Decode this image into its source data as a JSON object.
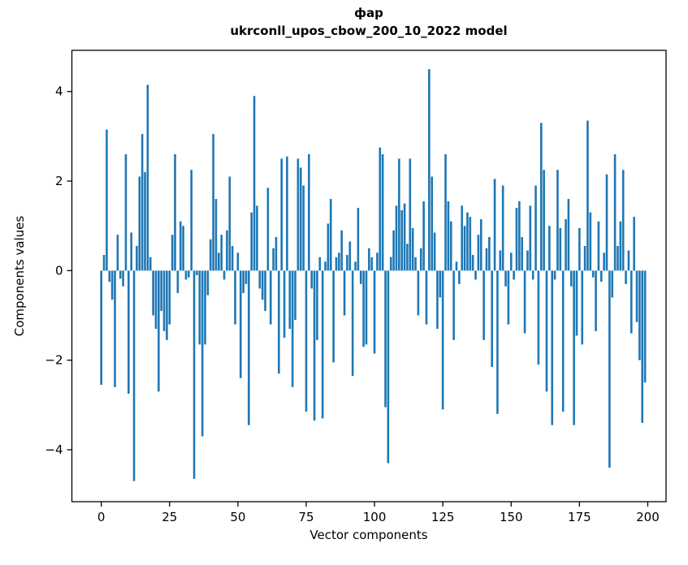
{
  "chart_data": {
    "type": "bar",
    "title_word": "фар",
    "title_model": "ukrconll_upos_cbow_200_10_2022 model",
    "title": "фар\nukrconll_upos_cbow_200_10_2022 model",
    "xlabel": "Vector components",
    "ylabel": "Components values",
    "bar_color": "#1f77b4",
    "axis_color": "#000000",
    "xlim": [
      -10.75,
      206.7
    ],
    "ylim": [
      -5.16,
      4.92
    ],
    "x_ticks": [
      {
        "value": 0,
        "label": "0"
      },
      {
        "value": 25,
        "label": "25"
      },
      {
        "value": 50,
        "label": "50"
      },
      {
        "value": 75,
        "label": "75"
      },
      {
        "value": 100,
        "label": "100"
      },
      {
        "value": 125,
        "label": "125"
      },
      {
        "value": 150,
        "label": "150"
      },
      {
        "value": 175,
        "label": "175"
      },
      {
        "value": 200,
        "label": "200"
      }
    ],
    "y_ticks": [
      {
        "value": -4,
        "label": "−4"
      },
      {
        "value": -2,
        "label": "−2"
      },
      {
        "value": 0,
        "label": "0"
      },
      {
        "value": 2,
        "label": "2"
      },
      {
        "value": 4,
        "label": "4"
      }
    ],
    "x_start": 0,
    "values": [
      -2.55,
      0.35,
      3.15,
      -0.25,
      -0.65,
      -2.6,
      0.8,
      -0.18,
      -0.35,
      2.6,
      -2.75,
      0.85,
      -4.7,
      0.55,
      2.1,
      3.05,
      2.2,
      4.15,
      0.3,
      -1.0,
      -1.3,
      -2.7,
      -0.9,
      -1.35,
      -1.55,
      -1.2,
      0.8,
      2.6,
      -0.5,
      1.1,
      1.0,
      -0.2,
      -0.15,
      2.25,
      -4.65,
      -0.1,
      -1.65,
      -3.7,
      -1.65,
      -0.55,
      0.7,
      3.05,
      1.6,
      0.4,
      0.8,
      -0.2,
      0.9,
      2.1,
      0.55,
      -1.2,
      0.4,
      -2.4,
      -0.5,
      -0.3,
      -3.45,
      1.3,
      3.9,
      1.45,
      -0.4,
      -0.65,
      -0.9,
      1.85,
      -1.2,
      0.5,
      0.75,
      -2.3,
      2.5,
      -1.5,
      2.55,
      -1.3,
      -2.6,
      -1.1,
      2.5,
      2.3,
      1.9,
      -3.15,
      2.6,
      -0.4,
      -3.35,
      -1.55,
      0.3,
      -3.3,
      0.2,
      1.05,
      1.6,
      -2.05,
      0.3,
      0.4,
      0.9,
      -1.0,
      0.35,
      0.65,
      -2.35,
      0.2,
      1.4,
      -0.3,
      -1.7,
      -1.65,
      0.5,
      0.3,
      -1.85,
      0.4,
      2.75,
      2.6,
      -3.05,
      -4.3,
      0.3,
      0.9,
      1.45,
      2.5,
      1.35,
      1.5,
      0.6,
      2.5,
      0.95,
      0.3,
      -1.0,
      0.5,
      1.55,
      -1.2,
      4.5,
      2.1,
      0.85,
      -1.3,
      -0.6,
      -3.1,
      2.6,
      1.55,
      1.1,
      -1.55,
      0.2,
      -0.3,
      1.45,
      1.0,
      1.3,
      1.2,
      0.35,
      -0.2,
      0.8,
      1.15,
      -1.55,
      0.5,
      0.75,
      -2.15,
      2.05,
      -3.2,
      0.45,
      1.9,
      -0.35,
      -1.2,
      0.4,
      -0.2,
      1.4,
      1.55,
      0.75,
      -1.4,
      0.45,
      1.45,
      -0.2,
      1.9,
      -2.1,
      3.3,
      2.25,
      -2.7,
      1.0,
      -3.45,
      -0.2,
      2.25,
      0.95,
      -3.15,
      1.15,
      1.6,
      -0.35,
      -3.45,
      -1.45,
      0.95,
      -1.65,
      0.55,
      3.35,
      1.3,
      -0.15,
      -1.35,
      1.1,
      -0.25,
      0.4,
      2.15,
      -4.4,
      -0.6,
      2.6,
      0.55,
      1.1,
      2.25,
      -0.3,
      0.45,
      -1.4,
      1.2,
      -1.15,
      -2.0,
      -3.4,
      -2.5
    ]
  }
}
